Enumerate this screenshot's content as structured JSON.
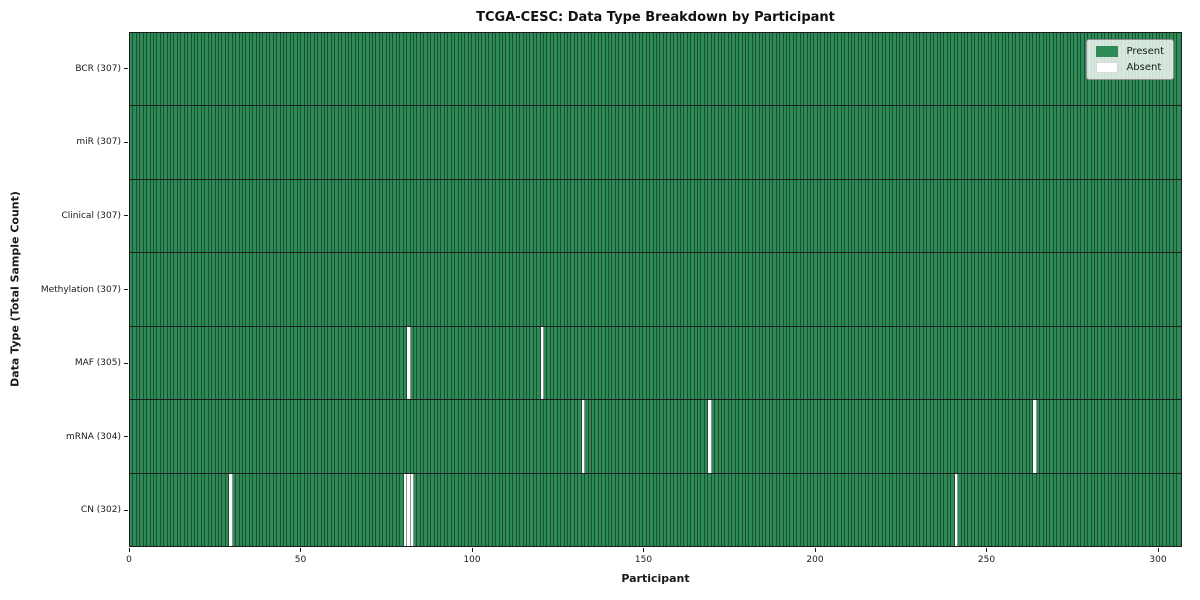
{
  "title": "TCGA-CESC: Data Type Breakdown by Participant",
  "x_axis": {
    "label": "Participant",
    "ticks": [
      "0",
      "50",
      "100",
      "150",
      "200",
      "250",
      "300"
    ]
  },
  "y_axis": {
    "label": "Data Type (Total Sample Count)"
  },
  "legend": {
    "items": [
      {
        "label": "Present",
        "color": "#2e8b57"
      },
      {
        "label": "Absent",
        "color": "#ffffff"
      }
    ]
  },
  "colors": {
    "present": "#2e8b57",
    "absent": "#ffffff",
    "cell_edge": "rgba(0,0,0,0.42)",
    "row_divider": "#1c1c1c"
  },
  "chart_data": {
    "type": "heatmap",
    "title": "TCGA-CESC: Data Type Breakdown by Participant",
    "xlabel": "Participant",
    "ylabel": "Data Type (Total Sample Count)",
    "n_participants": 307,
    "x_ticks": [
      0,
      50,
      100,
      150,
      200,
      250,
      300
    ],
    "xlim": [
      0,
      307
    ],
    "legend_entries": [
      "Present",
      "Absent"
    ],
    "legend_position": "upper right",
    "grid": false,
    "rows": [
      {
        "label": "BCR (307)",
        "name": "BCR",
        "total_samples": 307,
        "absent_participants": []
      },
      {
        "label": "miR (307)",
        "name": "miR",
        "total_samples": 307,
        "absent_participants": []
      },
      {
        "label": "Clinical (307)",
        "name": "Clinical",
        "total_samples": 307,
        "absent_participants": []
      },
      {
        "label": "Methylation (307)",
        "name": "Methylation",
        "total_samples": 307,
        "absent_participants": []
      },
      {
        "label": "MAF (305)",
        "name": "MAF",
        "total_samples": 305,
        "absent_participants": [
          81,
          120
        ]
      },
      {
        "label": "mRNA (304)",
        "name": "mRNA",
        "total_samples": 304,
        "absent_participants": [
          132,
          169,
          264
        ]
      },
      {
        "label": "CN (302)",
        "name": "CN",
        "total_samples": 302,
        "absent_participants": [
          29,
          80,
          81,
          82,
          241
        ]
      }
    ]
  }
}
